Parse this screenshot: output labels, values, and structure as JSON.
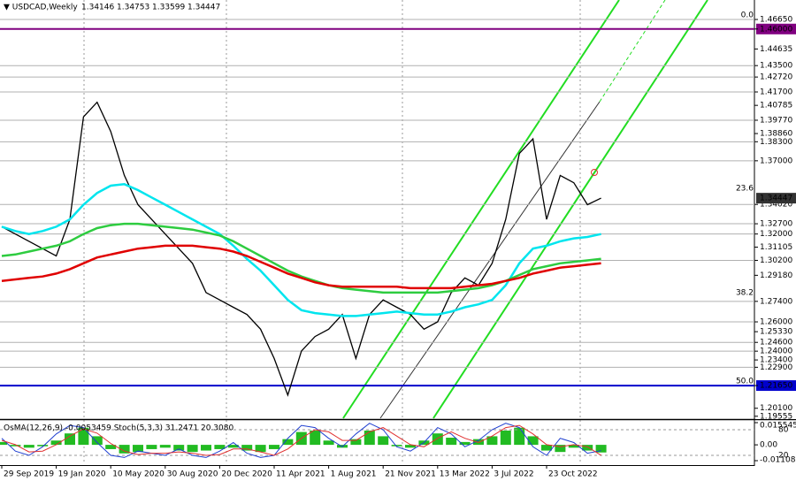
{
  "chart_data": {
    "type": "line",
    "title": "▼ USDCAD,Weekly",
    "ohlc_header": [
      1.34146,
      1.34753,
      1.33599,
      1.34447
    ],
    "last_price": 1.34447,
    "xlim": [
      0,
      55
    ],
    "ylim": [
      1.1942,
      1.4798
    ],
    "xticks": [
      {
        "value": 0,
        "label": "29 Sep 2019"
      },
      {
        "value": 4,
        "label": "19 Jan 2020"
      },
      {
        "value": 8,
        "label": "10 May 2020"
      },
      {
        "value": 12,
        "label": "30 Aug 2020"
      },
      {
        "value": 16,
        "label": "20 Dec 2020"
      },
      {
        "value": 20,
        "label": "11 Apr 2021"
      },
      {
        "value": 24,
        "label": "1 Aug 2021"
      },
      {
        "value": 28,
        "label": "21 Nov 2021"
      },
      {
        "value": 32,
        "label": "13 Mar 2022"
      },
      {
        "value": 36,
        "label": "3 Jul 2022"
      },
      {
        "value": 40,
        "label": "23 Oct 2022"
      }
    ],
    "yticks": [
      {
        "value": 1.4665,
        "label": "1.46650"
      },
      {
        "value": 1.46,
        "label": "1.46000"
      },
      1.44635,
      {
        "value": 1.435,
        "label": "1.43500"
      },
      {
        "value": 1.4272,
        "label": "1.42720"
      },
      {
        "value": 1.417,
        "label": "1.41700"
      },
      1.40785,
      {
        "value": 1.3977,
        "label": "1.39770"
      },
      {
        "value": 1.3886,
        "label": "1.38860"
      },
      {
        "value": 1.383,
        "label": "1.38300"
      },
      {
        "value": 1.37,
        "label": "1.37000"
      },
      {
        "value": 1.3402,
        "label": "1.34020"
      },
      {
        "value": 1.327,
        "label": "1.32700"
      },
      {
        "value": 1.32,
        "label": "1.32000"
      },
      1.31105,
      {
        "value": 1.302,
        "label": "1.30200"
      },
      {
        "value": 1.2918,
        "label": "1.29180"
      },
      {
        "value": 1.274,
        "label": "1.27400"
      },
      {
        "value": 1.26,
        "label": "1.26000"
      },
      {
        "value": 1.2533,
        "label": "1.25330"
      },
      {
        "value": 1.246,
        "label": "1.24600"
      },
      {
        "value": 1.24,
        "label": "1.24000"
      },
      {
        "value": 1.234,
        "label": "1.23400"
      },
      {
        "value": 1.229,
        "label": "1.22900"
      },
      {
        "value": 1.2165,
        "label": "1.21650"
      },
      {
        "value": 1.201,
        "label": "1.20100"
      },
      1.19555
    ],
    "levels": [
      1.4665,
      1.435,
      1.4272,
      1.417,
      1.3977,
      1.383,
      1.37,
      1.3402,
      1.327,
      1.32,
      1.302,
      1.274,
      1.26,
      1.246,
      1.24,
      1.229
    ],
    "level_color": "#b0b0b0",
    "key_levels": [
      {
        "value": 1.46,
        "color": "#800080"
      },
      {
        "value": 1.2165,
        "color": "#0000cc"
      }
    ],
    "fib_levels": [
      {
        "label": "0.0",
        "value": 1.4665
      },
      {
        "label": "23.6",
        "value": 1.3481
      },
      {
        "label": "38.2",
        "value": 1.2769
      },
      {
        "label": "50.0",
        "value": 1.2165
      }
    ],
    "series": [
      {
        "name": "USDCAD",
        "color": "#000000",
        "values": [
          1.325,
          1.32,
          1.315,
          1.31,
          1.305,
          1.33,
          1.4,
          1.41,
          1.39,
          1.36,
          1.34,
          1.33,
          1.32,
          1.31,
          1.3,
          1.28,
          1.275,
          1.27,
          1.265,
          1.255,
          1.235,
          1.21,
          1.24,
          1.25,
          1.255,
          1.265,
          1.235,
          1.265,
          1.275,
          1.27,
          1.265,
          1.255,
          1.26,
          1.28,
          1.29,
          1.285,
          1.3,
          1.33,
          1.375,
          1.385,
          1.33,
          1.36,
          1.355,
          1.34,
          1.34447
        ]
      },
      {
        "name": "MA fast",
        "color": "#00e5ee",
        "values": [
          1.325,
          1.322,
          1.32,
          1.322,
          1.325,
          1.33,
          1.34,
          1.348,
          1.353,
          1.354,
          1.35,
          1.345,
          1.34,
          1.335,
          1.33,
          1.325,
          1.32,
          1.312,
          1.303,
          1.295,
          1.285,
          1.275,
          1.268,
          1.266,
          1.265,
          1.264,
          1.264,
          1.265,
          1.266,
          1.267,
          1.266,
          1.265,
          1.265,
          1.267,
          1.27,
          1.272,
          1.275,
          1.285,
          1.3,
          1.31,
          1.312,
          1.315,
          1.317,
          1.318,
          1.32
        ]
      },
      {
        "name": "MA mid",
        "color": "#2ecc40",
        "values": [
          1.305,
          1.306,
          1.308,
          1.31,
          1.312,
          1.315,
          1.32,
          1.324,
          1.326,
          1.327,
          1.327,
          1.326,
          1.325,
          1.324,
          1.323,
          1.321,
          1.319,
          1.315,
          1.31,
          1.305,
          1.3,
          1.295,
          1.291,
          1.288,
          1.285,
          1.283,
          1.282,
          1.281,
          1.28,
          1.28,
          1.28,
          1.28,
          1.28,
          1.281,
          1.282,
          1.283,
          1.285,
          1.288,
          1.292,
          1.296,
          1.298,
          1.3,
          1.301,
          1.302,
          1.303
        ]
      },
      {
        "name": "MA slow",
        "color": "#e00000",
        "values": [
          1.288,
          1.289,
          1.29,
          1.291,
          1.293,
          1.296,
          1.3,
          1.304,
          1.306,
          1.308,
          1.31,
          1.311,
          1.312,
          1.312,
          1.312,
          1.311,
          1.31,
          1.308,
          1.305,
          1.301,
          1.297,
          1.293,
          1.29,
          1.287,
          1.285,
          1.284,
          1.284,
          1.284,
          1.284,
          1.284,
          1.283,
          1.283,
          1.283,
          1.283,
          1.284,
          1.285,
          1.286,
          1.288,
          1.29,
          1.293,
          1.295,
          1.297,
          1.298,
          1.299,
          1.3
        ]
      }
    ],
    "indicator": {
      "label": "OsMA(12,26,9) -0.0053459 Stoch(5,3,3) 31.2471 20.3080",
      "ylim": [
        -0.011083,
        0.0155457
      ],
      "yticks": [
        0.0155457,
        {
          "value": 0,
          "label": "0.00"
        },
        -0.011083
      ],
      "y2lim": [
        0,
        100
      ],
      "y2ticks": [
        80,
        20
      ],
      "osma": {
        "color": "#22bb22",
        "values": [
          0.002,
          -0.001,
          -0.002,
          -0.001,
          0.003,
          0.008,
          0.012,
          0.006,
          -0.003,
          -0.006,
          -0.005,
          -0.003,
          -0.002,
          -0.004,
          -0.005,
          -0.004,
          -0.003,
          -0.002,
          -0.004,
          -0.005,
          -0.003,
          0.004,
          0.009,
          0.01,
          0.003,
          -0.002,
          0.004,
          0.01,
          0.006,
          -0.001,
          -0.002,
          0.003,
          0.008,
          0.005,
          0.002,
          0.004,
          0.006,
          0.01,
          0.012,
          0.006,
          -0.004,
          -0.005,
          -0.002,
          -0.004,
          -0.0053459
        ]
      },
      "stoch_main": {
        "color": "#1f3fd0",
        "values": [
          60,
          30,
          20,
          40,
          70,
          90,
          85,
          50,
          20,
          15,
          30,
          25,
          20,
          35,
          20,
          15,
          30,
          50,
          25,
          15,
          20,
          60,
          90,
          85,
          60,
          40,
          70,
          95,
          80,
          40,
          30,
          50,
          85,
          70,
          40,
          55,
          80,
          95,
          85,
          40,
          20,
          60,
          50,
          25,
          31.2471
        ]
      },
      "stoch_signal": {
        "color": "#e03030",
        "values": [
          55,
          45,
          28,
          30,
          45,
          65,
          82,
          72,
          48,
          30,
          22,
          25,
          25,
          28,
          25,
          20,
          22,
          35,
          35,
          28,
          20,
          35,
          60,
          80,
          75,
          55,
          55,
          75,
          85,
          65,
          45,
          40,
          60,
          75,
          60,
          50,
          65,
          85,
          90,
          70,
          45,
          40,
          45,
          40,
          20.308
        ]
      }
    }
  }
}
